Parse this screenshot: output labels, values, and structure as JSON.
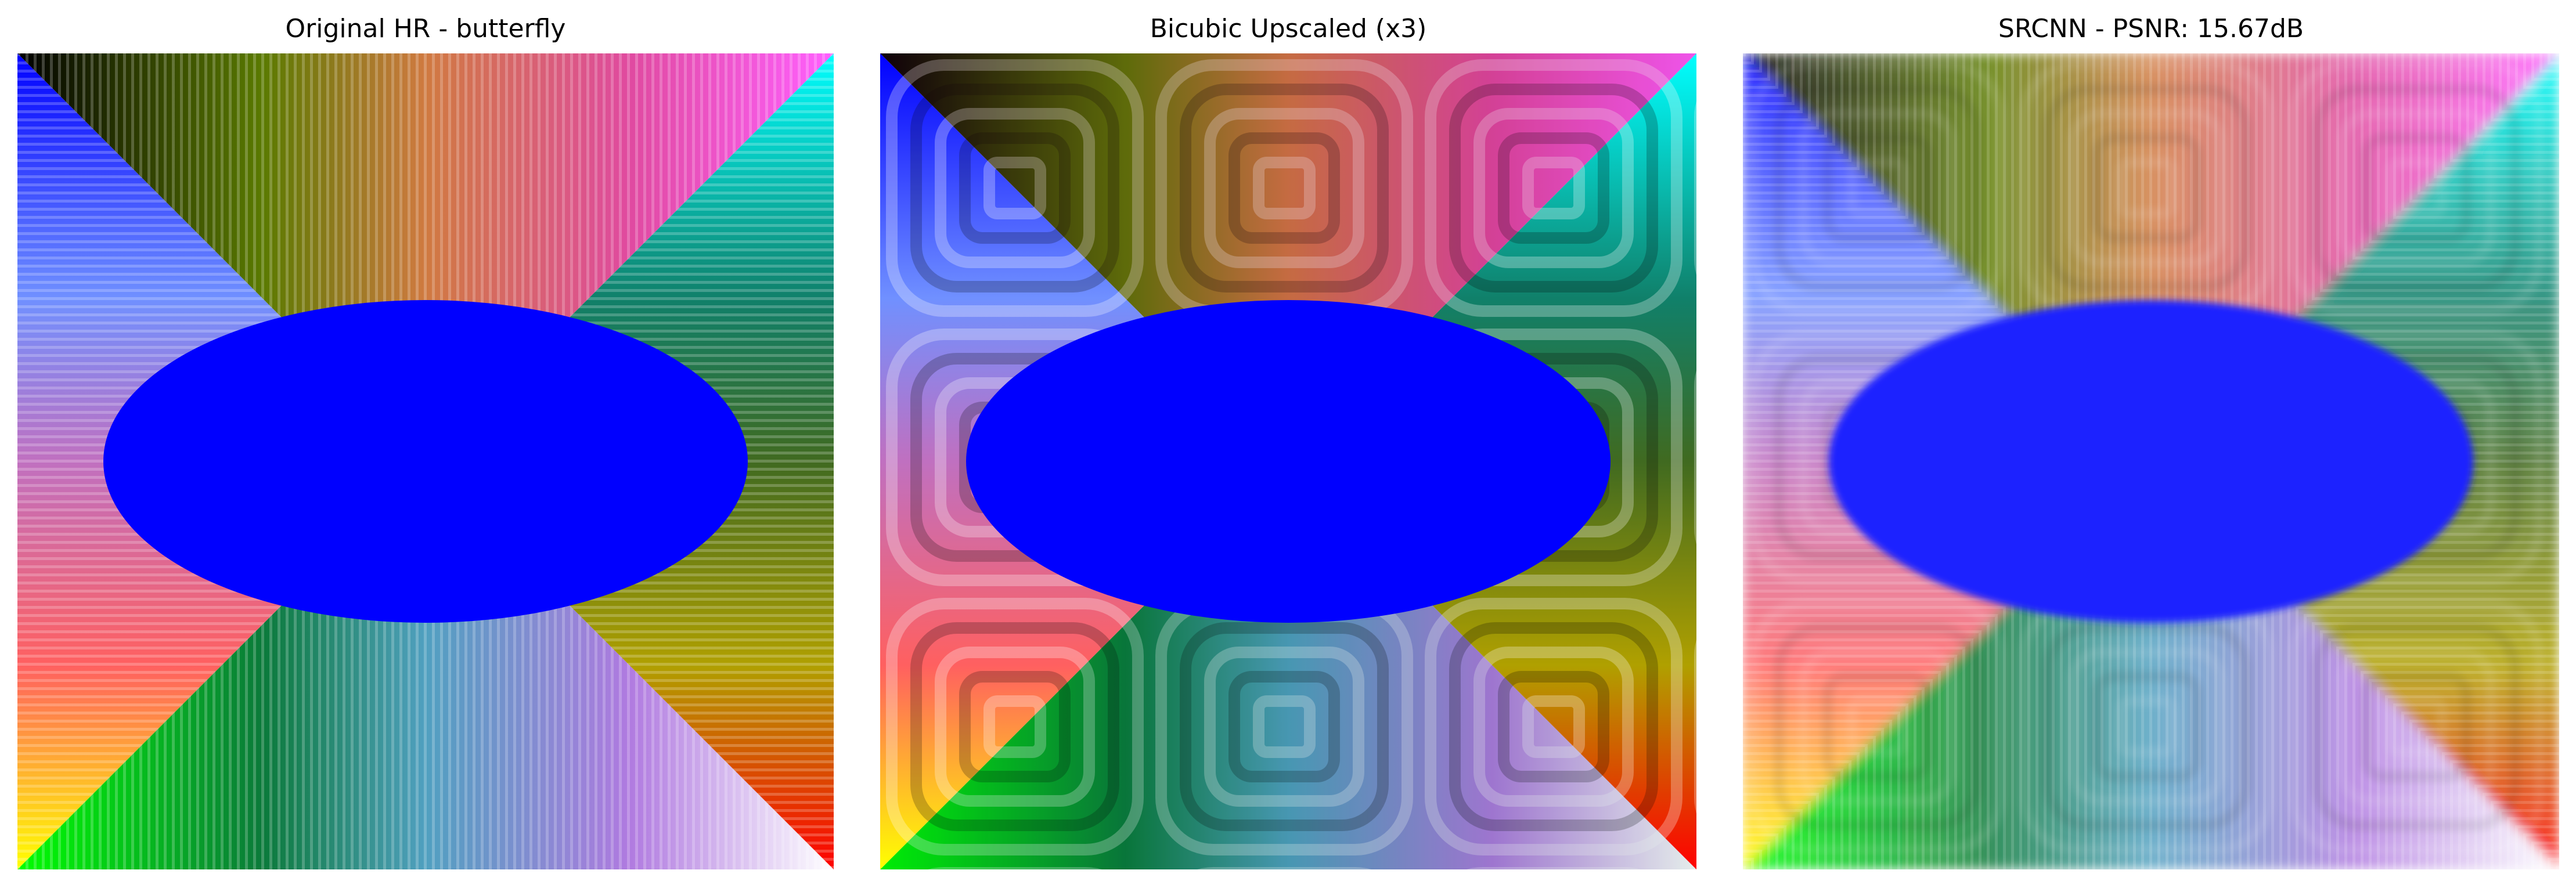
{
  "panels": [
    {
      "title": "Original HR - butterfly"
    },
    {
      "title": "Bicubic Upscaled (x3)"
    },
    {
      "title": "SRCNN - PSNR: 15.67dB"
    }
  ],
  "colors": {
    "ellipse": "#0000ff",
    "background": "#ffffff"
  }
}
